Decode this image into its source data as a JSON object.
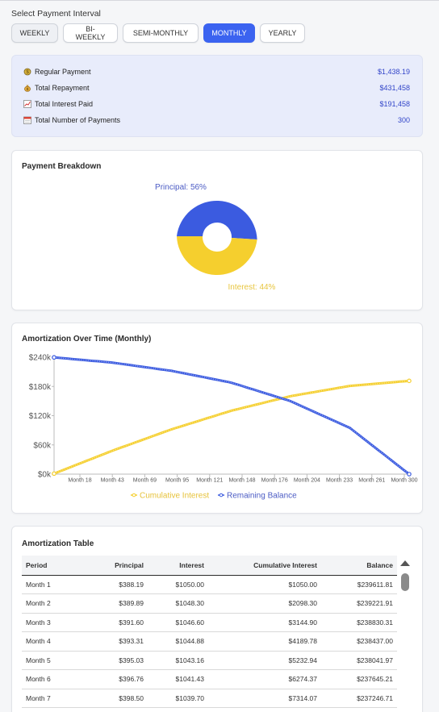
{
  "interval": {
    "title": "Select Payment Interval",
    "options": [
      "WEEKLY",
      "BI-WEEKLY",
      "SEMI-MONTHLY",
      "MONTHLY",
      "YEARLY"
    ],
    "selected": "MONTHLY"
  },
  "summary": {
    "rows": [
      {
        "icon": "coin-icon",
        "label": "Regular Payment",
        "value": "$1,438.19"
      },
      {
        "icon": "money-bag-icon",
        "label": "Total Repayment",
        "value": "$431,458"
      },
      {
        "icon": "chart-icon",
        "label": "Total Interest Paid",
        "value": "$191,458"
      },
      {
        "icon": "calendar-icon",
        "label": "Total Number of Payments",
        "value": "300"
      }
    ]
  },
  "breakdown": {
    "title": "Payment Breakdown",
    "principal_label": "Principal: 56%",
    "interest_label": "Interest: 44%"
  },
  "chart_data": {
    "type": "line",
    "title": "Amortization Over Time (Monthly)",
    "x_ticks": [
      "Month 18",
      "Month 43",
      "Month 69",
      "Month 95",
      "Month 121",
      "Month 148",
      "Month 176",
      "Month 204",
      "Month 233",
      "Month 261",
      "Month 300"
    ],
    "y_ticks": [
      "$240k",
      "$180k",
      "$120k",
      "$60k",
      "$0k"
    ],
    "ylim": [
      0,
      240000
    ],
    "xlim": [
      1,
      300
    ],
    "legend": "bottom",
    "series": [
      {
        "name": "Cumulative Interest",
        "color": "#f5cf2e",
        "points": [
          [
            1,
            1050
          ],
          [
            50,
            48000
          ],
          [
            100,
            92000
          ],
          [
            150,
            130000
          ],
          [
            200,
            160000
          ],
          [
            250,
            181000
          ],
          [
            300,
            191458
          ]
        ]
      },
      {
        "name": "Remaining Balance",
        "color": "#3b5be0",
        "points": [
          [
            1,
            239612
          ],
          [
            50,
            229000
          ],
          [
            100,
            212000
          ],
          [
            150,
            188000
          ],
          [
            200,
            150000
          ],
          [
            250,
            95000
          ],
          [
            300,
            0
          ]
        ]
      }
    ]
  },
  "table": {
    "title": "Amortization Table",
    "headers": [
      "Period",
      "Principal",
      "Interest",
      "Cumulative Interest",
      "Balance"
    ],
    "rows": [
      [
        "Month 1",
        "$388.19",
        "$1050.00",
        "$1050.00",
        "$239611.81"
      ],
      [
        "Month 2",
        "$389.89",
        "$1048.30",
        "$2098.30",
        "$239221.91"
      ],
      [
        "Month 3",
        "$391.60",
        "$1046.60",
        "$3144.90",
        "$238830.31"
      ],
      [
        "Month 4",
        "$393.31",
        "$1044.88",
        "$4189.78",
        "$238437.00"
      ],
      [
        "Month 5",
        "$395.03",
        "$1043.16",
        "$5232.94",
        "$238041.97"
      ],
      [
        "Month 6",
        "$396.76",
        "$1041.43",
        "$6274.37",
        "$237645.21"
      ],
      [
        "Month 7",
        "$398.50",
        "$1039.70",
        "$7314.07",
        "$237246.71"
      ]
    ]
  },
  "colors": {
    "accent": "#3b63f0",
    "principal": "#3b5be0",
    "interest": "#f5cf2e"
  }
}
